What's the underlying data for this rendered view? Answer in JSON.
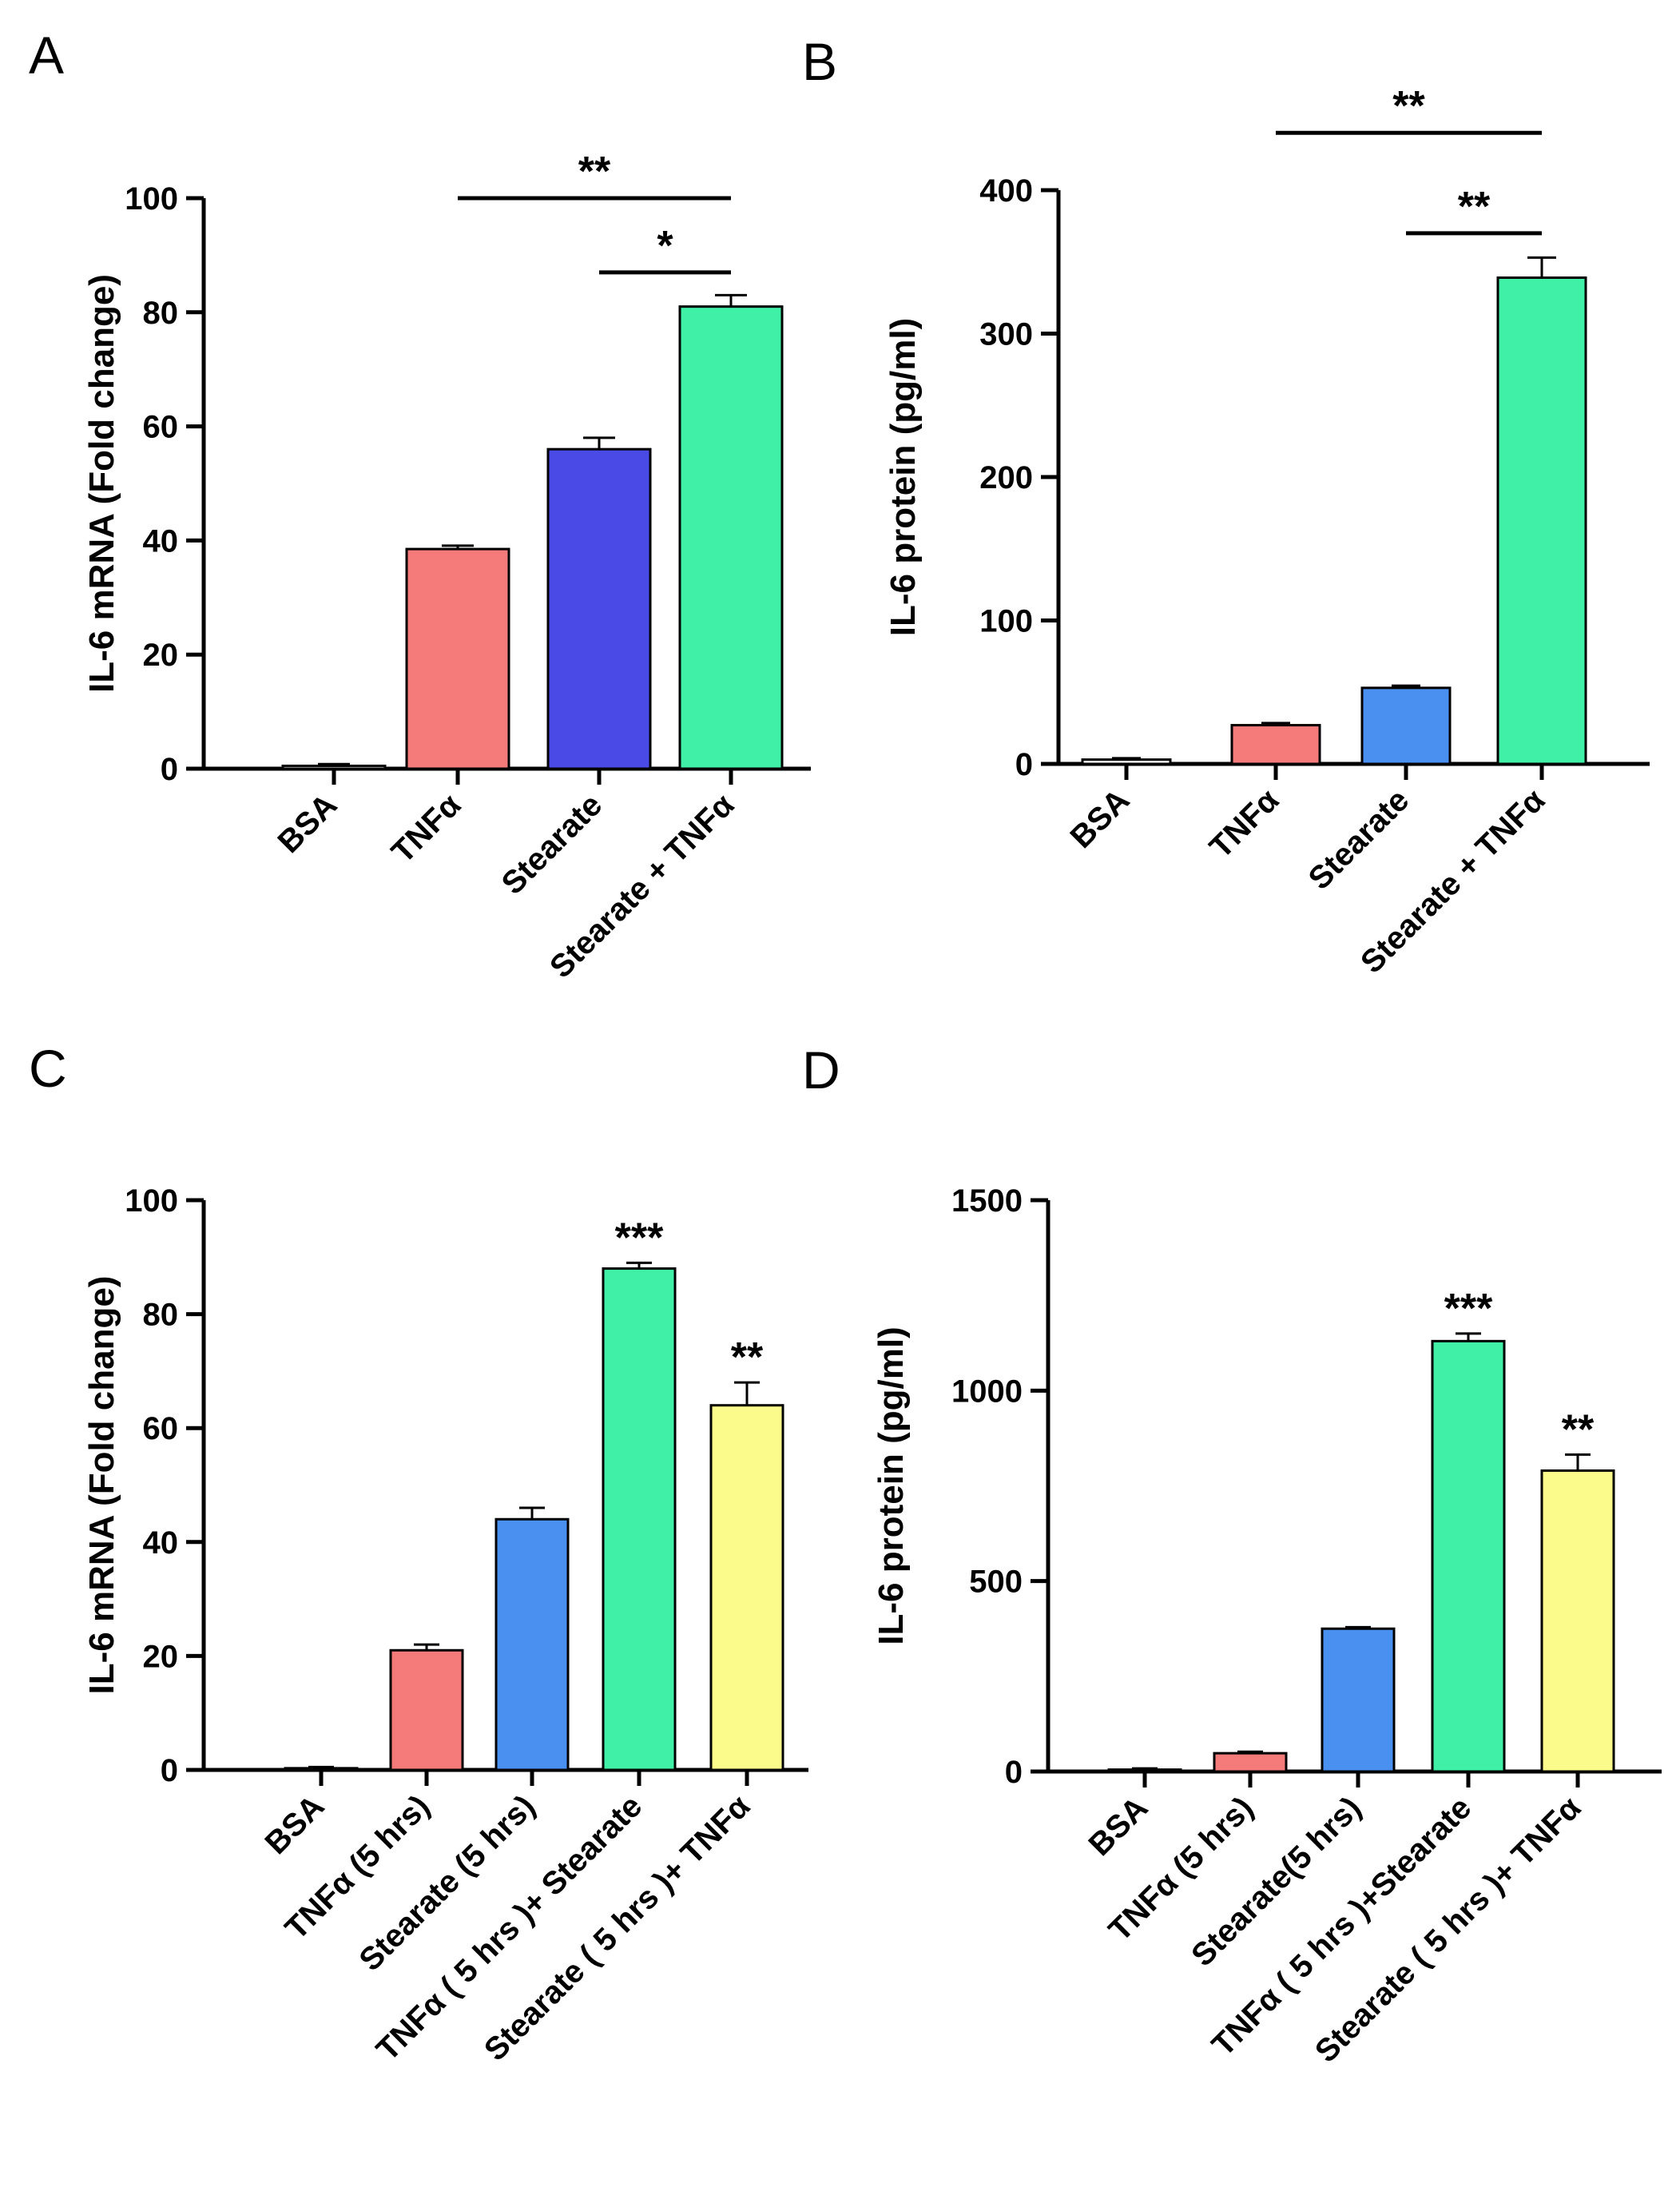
{
  "chart_data": [
    {
      "panel": "A",
      "type": "bar",
      "ylabel": "IL-6 mRNA  (Fold change)",
      "ylim": [
        0,
        100
      ],
      "yticks": [
        0,
        20,
        40,
        60,
        80,
        100
      ],
      "categories": [
        "BSA",
        "TNFα",
        "Stearate",
        "Stearate  + TNFα"
      ],
      "values": [
        0.5,
        38.5,
        56,
        81
      ],
      "errors": [
        0.3,
        0.6,
        2,
        2
      ],
      "colors": [
        "#ffffff",
        "#f57b7b",
        "#4a4ae6",
        "#40f0a6"
      ],
      "significance": [
        {
          "type": "bracket",
          "from": 1,
          "to": 3,
          "label": "**",
          "level": 100
        },
        {
          "type": "bracket",
          "from": 2,
          "to": 3,
          "label": "*",
          "level": 87
        }
      ]
    },
    {
      "panel": "B",
      "type": "bar",
      "ylabel": "IL-6 protein (pg/ml)",
      "ylim": [
        0,
        400
      ],
      "yticks": [
        0,
        100,
        200,
        300,
        400
      ],
      "categories": [
        "BSA",
        "TNFα",
        "Stearate",
        "Stearate  + TNFα"
      ],
      "values": [
        3,
        27,
        53,
        339
      ],
      "errors": [
        1,
        1.5,
        1.5,
        14
      ],
      "colors": [
        "#ffffff",
        "#f57b7b",
        "#4a90f0",
        "#40f0a6"
      ],
      "significance": [
        {
          "type": "bracket",
          "from": 1,
          "to": 3,
          "label": "**",
          "level": 440
        },
        {
          "type": "bracket",
          "from": 2,
          "to": 3,
          "label": "**",
          "level": 370
        }
      ]
    },
    {
      "panel": "C",
      "type": "bar",
      "ylabel": "IL-6 mRNA  (Fold change)",
      "ylim": [
        0,
        100
      ],
      "yticks": [
        0,
        20,
        40,
        60,
        80,
        100
      ],
      "categories": [
        "BSA",
        "TNFα (5 hrs)",
        "Stearate (5 hrs)",
        "TNFα ( 5 hrs )+ Stearate",
        "Stearate ( 5 hrs )+ TNFα"
      ],
      "values": [
        0.3,
        21,
        44,
        88,
        64
      ],
      "errors": [
        0.2,
        1,
        2,
        1,
        4
      ],
      "colors": [
        "#ffffff",
        "#f57b7b",
        "#4a90f0",
        "#40f0a6",
        "#fbfb8c"
      ],
      "significance": [
        {
          "type": "star",
          "bar": 3,
          "label": "***"
        },
        {
          "type": "star",
          "bar": 4,
          "label": "**"
        }
      ]
    },
    {
      "panel": "D",
      "type": "bar",
      "ylabel": "IL-6 protein (pg/ml)",
      "ylim": [
        0,
        1500
      ],
      "yticks": [
        0,
        500,
        1000,
        1500
      ],
      "categories": [
        "BSA",
        "TNFα (5 hrs)",
        "Stearate(5 hrs)",
        "TNFα ( 5 hrs )+Stearate",
        "Stearate ( 5 hrs )+ TNFα"
      ],
      "values": [
        5,
        48,
        375,
        1130,
        790
      ],
      "errors": [
        3,
        4,
        4,
        20,
        42
      ],
      "colors": [
        "#ffffff",
        "#f57b7b",
        "#4a90f0",
        "#40f0a6",
        "#fbfb8c"
      ],
      "significance": [
        {
          "type": "star",
          "bar": 3,
          "label": "***"
        },
        {
          "type": "star",
          "bar": 4,
          "label": "**"
        }
      ]
    }
  ]
}
